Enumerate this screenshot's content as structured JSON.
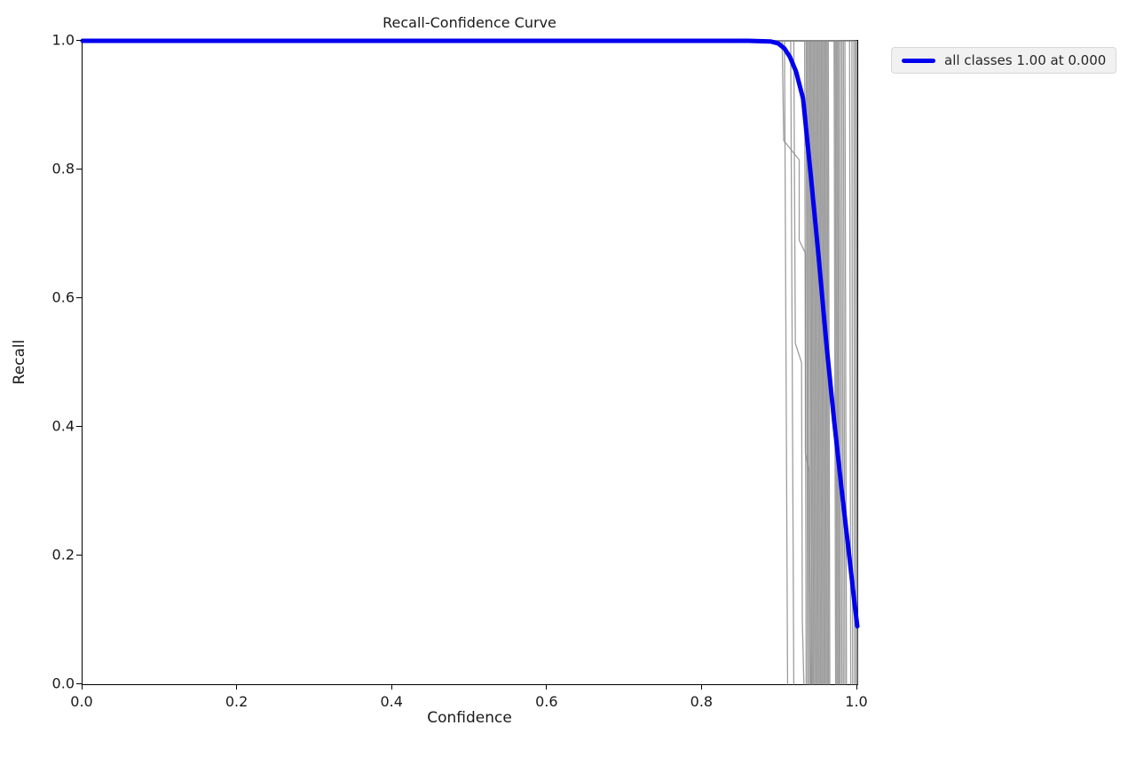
{
  "colors": {
    "background": "#ffffff",
    "spine": "#000000",
    "text": "#1a1a1a",
    "legend_bg": "#f1f1f2",
    "legend_border": "#d8d8d8",
    "all_classes_line": "#0000ee",
    "class_line": "#8c8c8c"
  },
  "chart_data": {
    "type": "line",
    "title": "Recall-Confidence Curve",
    "xlabel": "Confidence",
    "ylabel": "Recall",
    "xlim": [
      0,
      1
    ],
    "ylim": [
      0,
      1
    ],
    "x_tick_labels": [
      "0.0",
      "0.2",
      "0.4",
      "0.6",
      "0.8",
      "1.0"
    ],
    "y_tick_labels": [
      "0.0",
      "0.2",
      "0.4",
      "0.6",
      "0.8",
      "1.0"
    ],
    "grid": false,
    "legend": {
      "label": "all classes 1.00 at 0.000",
      "position": "upper right, outside axes",
      "swatch_color": "#0000ee"
    },
    "series": [
      {
        "name": "all classes",
        "color": "#0000ee",
        "linewidth": 5,
        "points": [
          [
            0,
            1
          ],
          [
            0.86,
            1
          ],
          [
            0.888,
            0.999
          ],
          [
            0.898,
            0.996
          ],
          [
            0.906,
            0.988
          ],
          [
            0.913,
            0.975
          ],
          [
            0.921,
            0.952
          ],
          [
            0.93,
            0.91
          ],
          [
            0.94,
            0.79
          ],
          [
            0.95,
            0.665
          ],
          [
            0.96,
            0.53
          ],
          [
            0.97,
            0.41
          ],
          [
            0.98,
            0.3
          ],
          [
            0.99,
            0.195
          ],
          [
            0.996,
            0.13
          ],
          [
            1.0,
            0.09
          ]
        ]
      }
    ],
    "class_curves": {
      "note": "per-class recall-confidence curves",
      "color": "#8c8c8c",
      "linewidth": 1.3,
      "opacity": 0.85,
      "curves": [
        [
          [
            0,
            1
          ],
          [
            0.903,
            1
          ],
          [
            0.905,
            0.845
          ],
          [
            0.925,
            0.815
          ],
          [
            0.925,
            0.69
          ],
          [
            0.933,
            0.67
          ],
          [
            0.933,
            0.36
          ],
          [
            0.938,
            0.33
          ],
          [
            0.939,
            0.07
          ],
          [
            0.94,
            0
          ]
        ],
        [
          [
            0,
            1
          ],
          [
            0.918,
            1
          ],
          [
            0.92,
            0.53
          ],
          [
            0.928,
            0.5
          ],
          [
            0.929,
            0.1
          ],
          [
            0.931,
            0
          ]
        ],
        [
          [
            0,
            1
          ],
          [
            0.906,
            1
          ],
          [
            0.91,
            0
          ]
        ],
        [
          [
            0,
            1
          ],
          [
            0.914,
            1
          ],
          [
            0.918,
            0
          ]
        ],
        [
          [
            0,
            1
          ],
          [
            0.932,
            1
          ],
          [
            0.934,
            0
          ]
        ],
        [
          [
            0,
            1
          ],
          [
            0.934,
            1
          ],
          [
            0.936,
            0
          ]
        ],
        [
          [
            0,
            1
          ],
          [
            0.9355,
            1
          ],
          [
            0.937,
            0
          ]
        ],
        [
          [
            0,
            1
          ],
          [
            0.937,
            1
          ],
          [
            0.939,
            0
          ]
        ],
        [
          [
            0,
            1
          ],
          [
            0.9385,
            1
          ],
          [
            0.941,
            0
          ]
        ],
        [
          [
            0,
            1
          ],
          [
            0.94,
            1
          ],
          [
            0.942,
            0
          ]
        ],
        [
          [
            0,
            1
          ],
          [
            0.9415,
            1
          ],
          [
            0.9435,
            0
          ]
        ],
        [
          [
            0,
            1
          ],
          [
            0.943,
            1
          ],
          [
            0.945,
            0
          ]
        ],
        [
          [
            0,
            1
          ],
          [
            0.9445,
            1
          ],
          [
            0.9465,
            0
          ]
        ],
        [
          [
            0,
            1
          ],
          [
            0.946,
            1
          ],
          [
            0.948,
            0
          ]
        ],
        [
          [
            0,
            1
          ],
          [
            0.9475,
            1
          ],
          [
            0.9495,
            0
          ]
        ],
        [
          [
            0,
            1
          ],
          [
            0.949,
            1
          ],
          [
            0.951,
            0
          ]
        ],
        [
          [
            0,
            1
          ],
          [
            0.9505,
            1
          ],
          [
            0.9525,
            0
          ]
        ],
        [
          [
            0,
            1
          ],
          [
            0.952,
            1
          ],
          [
            0.954,
            0
          ]
        ],
        [
          [
            0,
            1
          ],
          [
            0.9535,
            1
          ],
          [
            0.9555,
            0
          ]
        ],
        [
          [
            0,
            1
          ],
          [
            0.955,
            1
          ],
          [
            0.957,
            0
          ]
        ],
        [
          [
            0,
            1
          ],
          [
            0.9565,
            1
          ],
          [
            0.9585,
            0
          ]
        ],
        [
          [
            0,
            1
          ],
          [
            0.958,
            1
          ],
          [
            0.96,
            0
          ]
        ],
        [
          [
            0,
            1
          ],
          [
            0.9595,
            1
          ],
          [
            0.9615,
            0
          ]
        ],
        [
          [
            0,
            1
          ],
          [
            0.961,
            1
          ],
          [
            0.963,
            0
          ]
        ],
        [
          [
            0,
            1
          ],
          [
            0.9625,
            1
          ],
          [
            0.9645,
            0
          ]
        ],
        [
          [
            0,
            1
          ],
          [
            0.97,
            1
          ],
          [
            0.972,
            0
          ]
        ],
        [
          [
            0,
            1
          ],
          [
            0.9715,
            1
          ],
          [
            0.9735,
            0
          ]
        ],
        [
          [
            0,
            1
          ],
          [
            0.973,
            1
          ],
          [
            0.975,
            0
          ]
        ],
        [
          [
            0,
            1
          ],
          [
            0.9745,
            1
          ],
          [
            0.9765,
            0
          ]
        ],
        [
          [
            0,
            1
          ],
          [
            0.976,
            1
          ],
          [
            0.978,
            0
          ]
        ],
        [
          [
            0,
            1
          ],
          [
            0.978,
            1
          ],
          [
            0.98,
            0
          ]
        ],
        [
          [
            0,
            1
          ],
          [
            0.98,
            1
          ],
          [
            0.982,
            0
          ]
        ],
        [
          [
            0,
            1
          ],
          [
            0.982,
            1
          ],
          [
            0.984,
            0
          ]
        ],
        [
          [
            0,
            1
          ],
          [
            0.984,
            1
          ],
          [
            0.986,
            0
          ]
        ],
        [
          [
            0,
            1
          ],
          [
            0.99,
            1
          ],
          [
            0.9915,
            0
          ]
        ],
        [
          [
            0,
            1
          ],
          [
            0.993,
            1
          ],
          [
            0.994,
            0
          ]
        ],
        [
          [
            0,
            1
          ],
          [
            0.9955,
            1
          ],
          [
            0.9965,
            0
          ]
        ],
        [
          [
            0,
            1
          ],
          [
            0.9975,
            1
          ],
          [
            0.9985,
            0
          ]
        ],
        [
          [
            0,
            1
          ],
          [
            0.999,
            1
          ],
          [
            1.0,
            0
          ]
        ]
      ]
    }
  }
}
